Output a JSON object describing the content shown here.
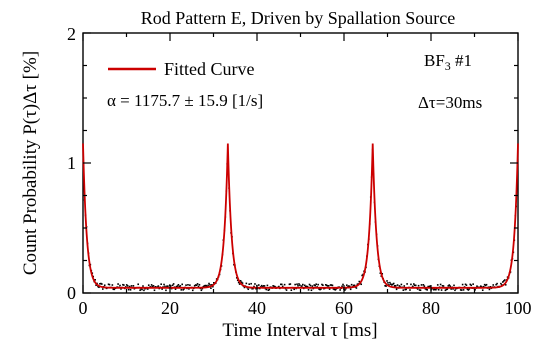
{
  "chart_data": {
    "type": "scatter",
    "title": "Rod Pattern E, Driven by Spallation Source",
    "xlabel": "Time Interval τ  [ms]",
    "ylabel": "Count Probability P(τ)Δτ [%]",
    "xlim": [
      0,
      100
    ],
    "ylim": [
      0,
      2
    ],
    "x_ticks": [
      "0",
      "20",
      "40",
      "60",
      "80",
      "100"
    ],
    "y_ticks": [
      "0",
      "1",
      "2"
    ],
    "grid": false,
    "legend": {
      "position": "top-left",
      "entries": [
        {
          "label": "Fitted Curve",
          "color": "#cc0000",
          "style": "line"
        }
      ]
    },
    "annotations": {
      "alpha": "α = 1175.7 ± 15.9 [1/s]",
      "detector": "BF",
      "detector_sub": "3",
      "detector_num": " #1",
      "bin_width": "Δτ=30ms"
    },
    "series": [
      {
        "name": "Fitted Curve",
        "kind": "line",
        "color": "#cc0000",
        "peak_centers": [
          0,
          33.3,
          66.6,
          100
        ],
        "peak_height": 1.15,
        "decay_constant_per_s": 1175.7,
        "baseline": 0.04
      },
      {
        "kind": "points",
        "color": "#000000",
        "peak_centers": [
          0,
          33.3,
          66.6,
          100
        ],
        "peak_height": 1.12,
        "baseline": 0.045,
        "scatter": 0.025
      }
    ]
  }
}
